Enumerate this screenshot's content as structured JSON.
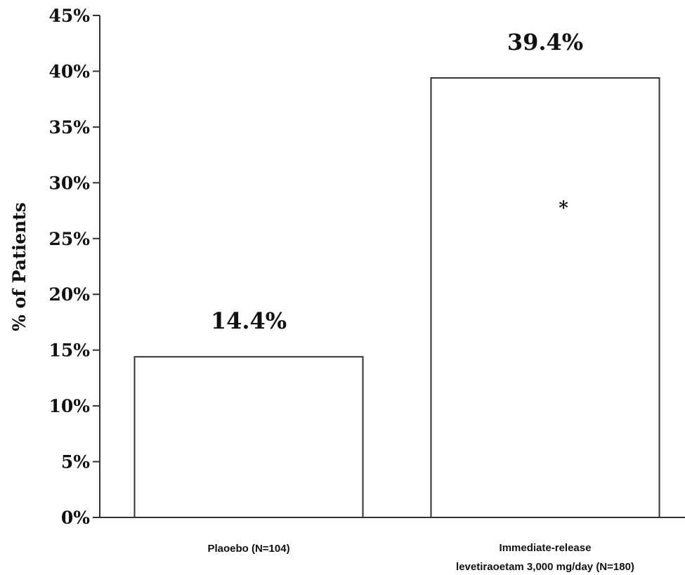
{
  "chart_data": {
    "type": "bar",
    "title": "",
    "xlabel": "",
    "ylabel": "% of Patients",
    "ylim": [
      0,
      45
    ],
    "yticks": [
      "0%",
      "5%",
      "10%",
      "15%",
      "20%",
      "25%",
      "30%",
      "35%",
      "40%",
      "45%"
    ],
    "ytick_values": [
      0,
      5,
      10,
      15,
      20,
      25,
      30,
      35,
      40,
      45
    ],
    "categories": [
      "Plaoebo (N=104)",
      "Immediate-release levetiraoetam 3,000 mg/day (N=180)"
    ],
    "category_lines": [
      [
        "Plaoebo (N=104)"
      ],
      [
        "Immediate-release",
        "levetiraoetam 3,000 mg/day (N=180)"
      ]
    ],
    "values": [
      14.4,
      39.4
    ],
    "data_labels": [
      "14.4%",
      "39.4%"
    ],
    "annotations": [
      {
        "category_index": 1,
        "text": "*"
      }
    ],
    "bar_fill": "#ffffff",
    "bar_stroke": "#333333",
    "grid": false,
    "legend": "none"
  }
}
